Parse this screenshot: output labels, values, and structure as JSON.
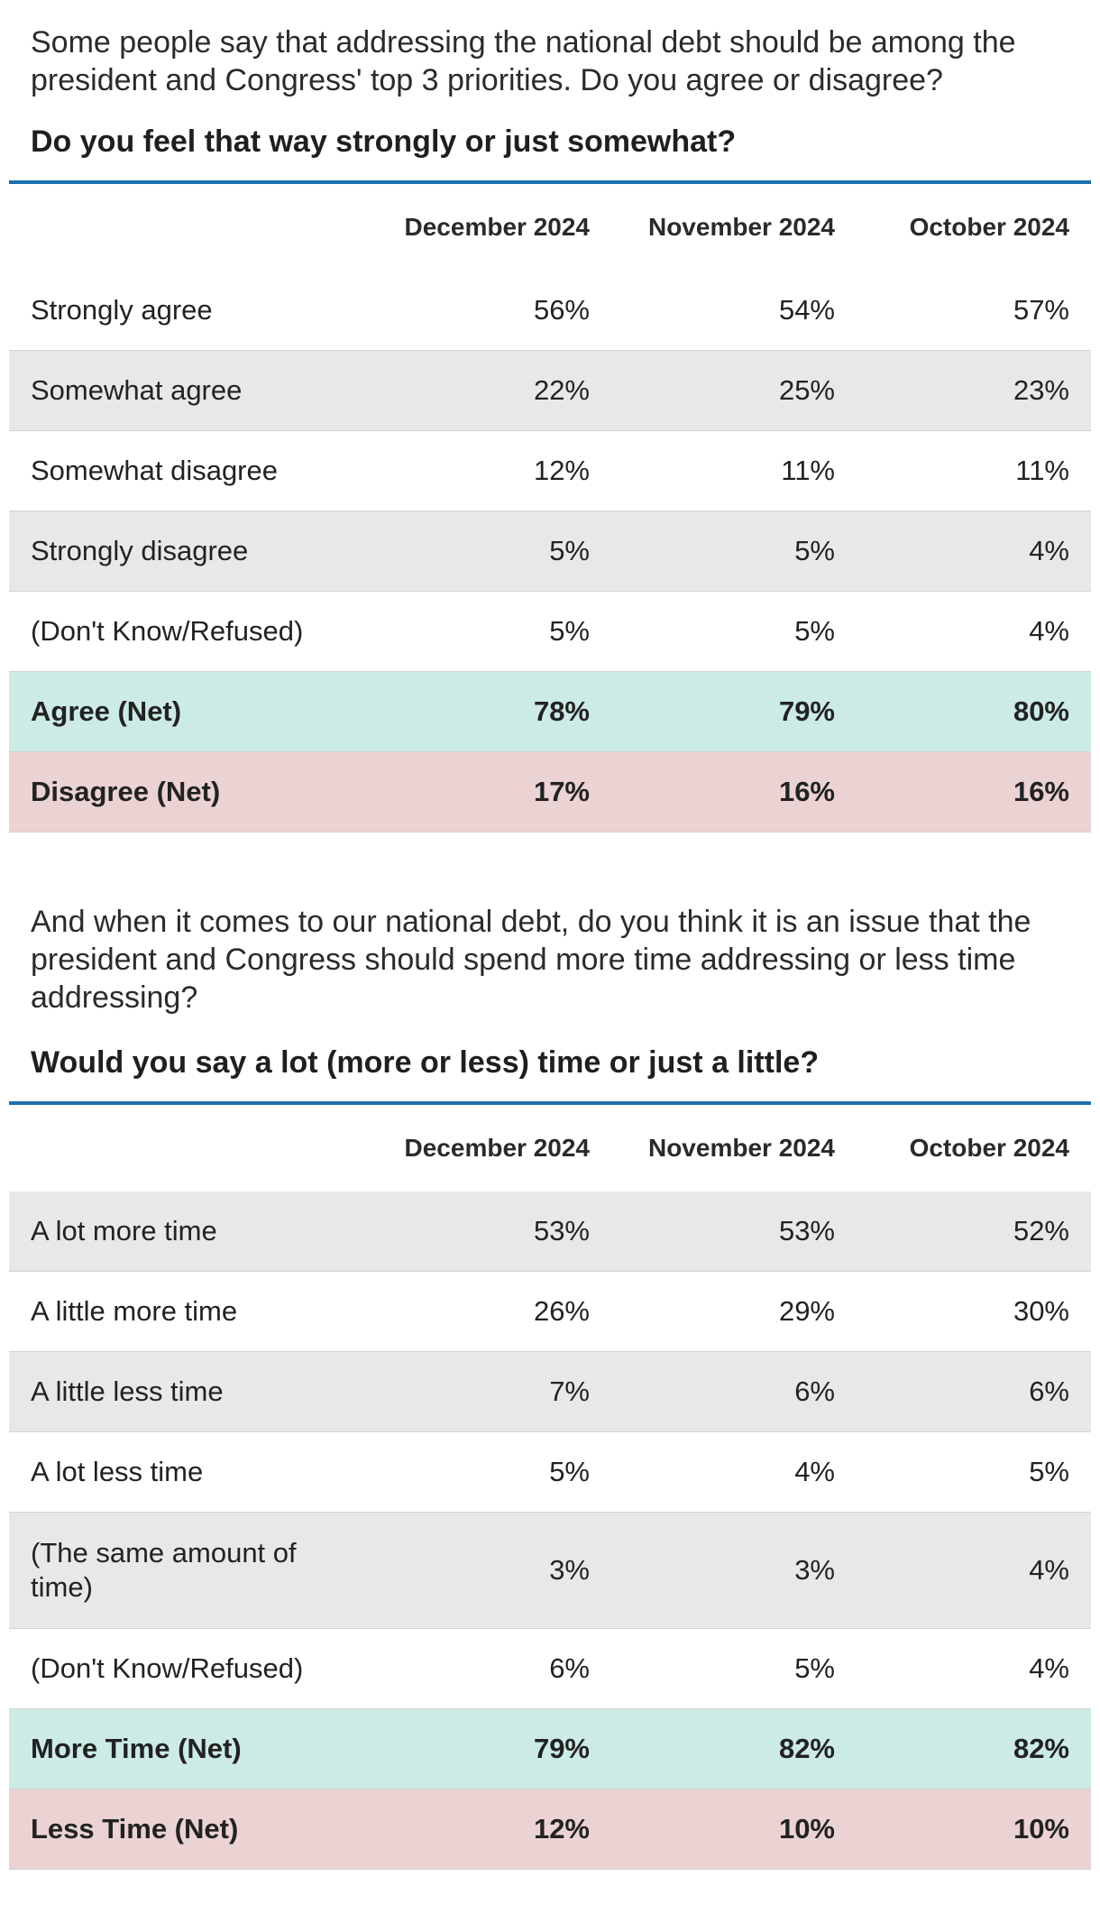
{
  "section1": {
    "question": "Some people say that addressing the national debt should be among the president and Congress' top 3 priorities. Do you agree or disagree?",
    "subquestion": "Do you feel that way strongly or just somewhat?",
    "columns": [
      "December 2024",
      "November 2024",
      "October 2024"
    ],
    "rows": [
      {
        "label": "Strongly agree",
        "values": [
          "56%",
          "54%",
          "57%"
        ]
      },
      {
        "label": "Somewhat agree",
        "values": [
          "22%",
          "25%",
          "23%"
        ]
      },
      {
        "label": "Somewhat disagree",
        "values": [
          "12%",
          "11%",
          "11%"
        ]
      },
      {
        "label": "Strongly disagree",
        "values": [
          "5%",
          "5%",
          "4%"
        ]
      },
      {
        "label": "(Don't Know/Refused)",
        "values": [
          "5%",
          "5%",
          "4%"
        ]
      },
      {
        "label": "Agree (Net)",
        "values": [
          "78%",
          "79%",
          "80%"
        ]
      },
      {
        "label": "Disagree (Net)",
        "values": [
          "17%",
          "16%",
          "16%"
        ]
      }
    ]
  },
  "section2": {
    "question": "And when it comes to our national debt, do you think it is an issue that the president and Congress should spend more time addressing or less time addressing?",
    "subquestion": "Would you say a lot (more or less) time or just a little?",
    "columns": [
      "December 2024",
      "November 2024",
      "October 2024"
    ],
    "rows": [
      {
        "label": "A lot more time",
        "values": [
          "53%",
          "53%",
          "52%"
        ]
      },
      {
        "label": "A little more time",
        "values": [
          "26%",
          "29%",
          "30%"
        ]
      },
      {
        "label": "A little less time",
        "values": [
          "7%",
          "6%",
          "6%"
        ]
      },
      {
        "label": "A lot less time",
        "values": [
          "5%",
          "4%",
          "5%"
        ]
      },
      {
        "label": "(The same amount of time)",
        "values": [
          "3%",
          "3%",
          "4%"
        ]
      },
      {
        "label": "(Don't Know/Refused)",
        "values": [
          "6%",
          "5%",
          "4%"
        ]
      },
      {
        "label": "More Time (Net)",
        "values": [
          "79%",
          "82%",
          "82%"
        ]
      },
      {
        "label": "Less Time (Net)",
        "values": [
          "12%",
          "10%",
          "10%"
        ]
      }
    ]
  },
  "colors": {
    "rule": "#1d6fb0",
    "shade": "#e8e8e8",
    "agree_net": "#ccebe6",
    "disagree_net": "#ebd3d3"
  }
}
